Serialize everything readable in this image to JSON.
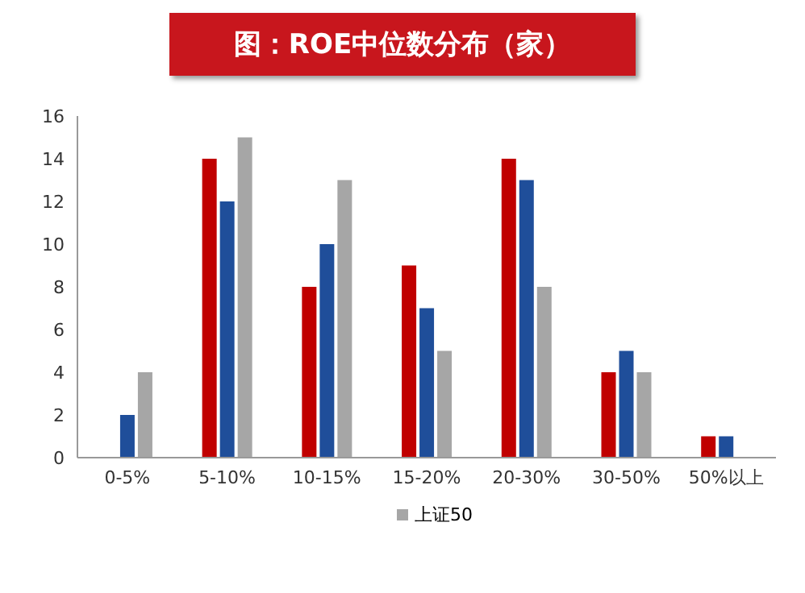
{
  "chart_data": {
    "type": "bar",
    "title": "图：ROE中位数分布（家）",
    "categories": [
      "0-5%",
      "5-10%",
      "10-15%",
      "15-20%",
      "20-30%",
      "30-50%",
      "50%以上"
    ],
    "series": [
      {
        "color": "#c00000",
        "values": [
          0,
          14,
          8,
          9,
          14,
          4,
          1
        ]
      },
      {
        "color": "#1f4e9a",
        "values": [
          2,
          12,
          10,
          7,
          13,
          5,
          1
        ]
      },
      {
        "name": "上证50",
        "color": "#a6a6a6",
        "values": [
          4,
          15,
          13,
          5,
          8,
          4,
          0
        ]
      }
    ],
    "ylim": [
      0,
      16
    ],
    "yticks": [
      0,
      2,
      4,
      6,
      8,
      10,
      12,
      14,
      16
    ],
    "grid": false,
    "legend": "bottom"
  }
}
